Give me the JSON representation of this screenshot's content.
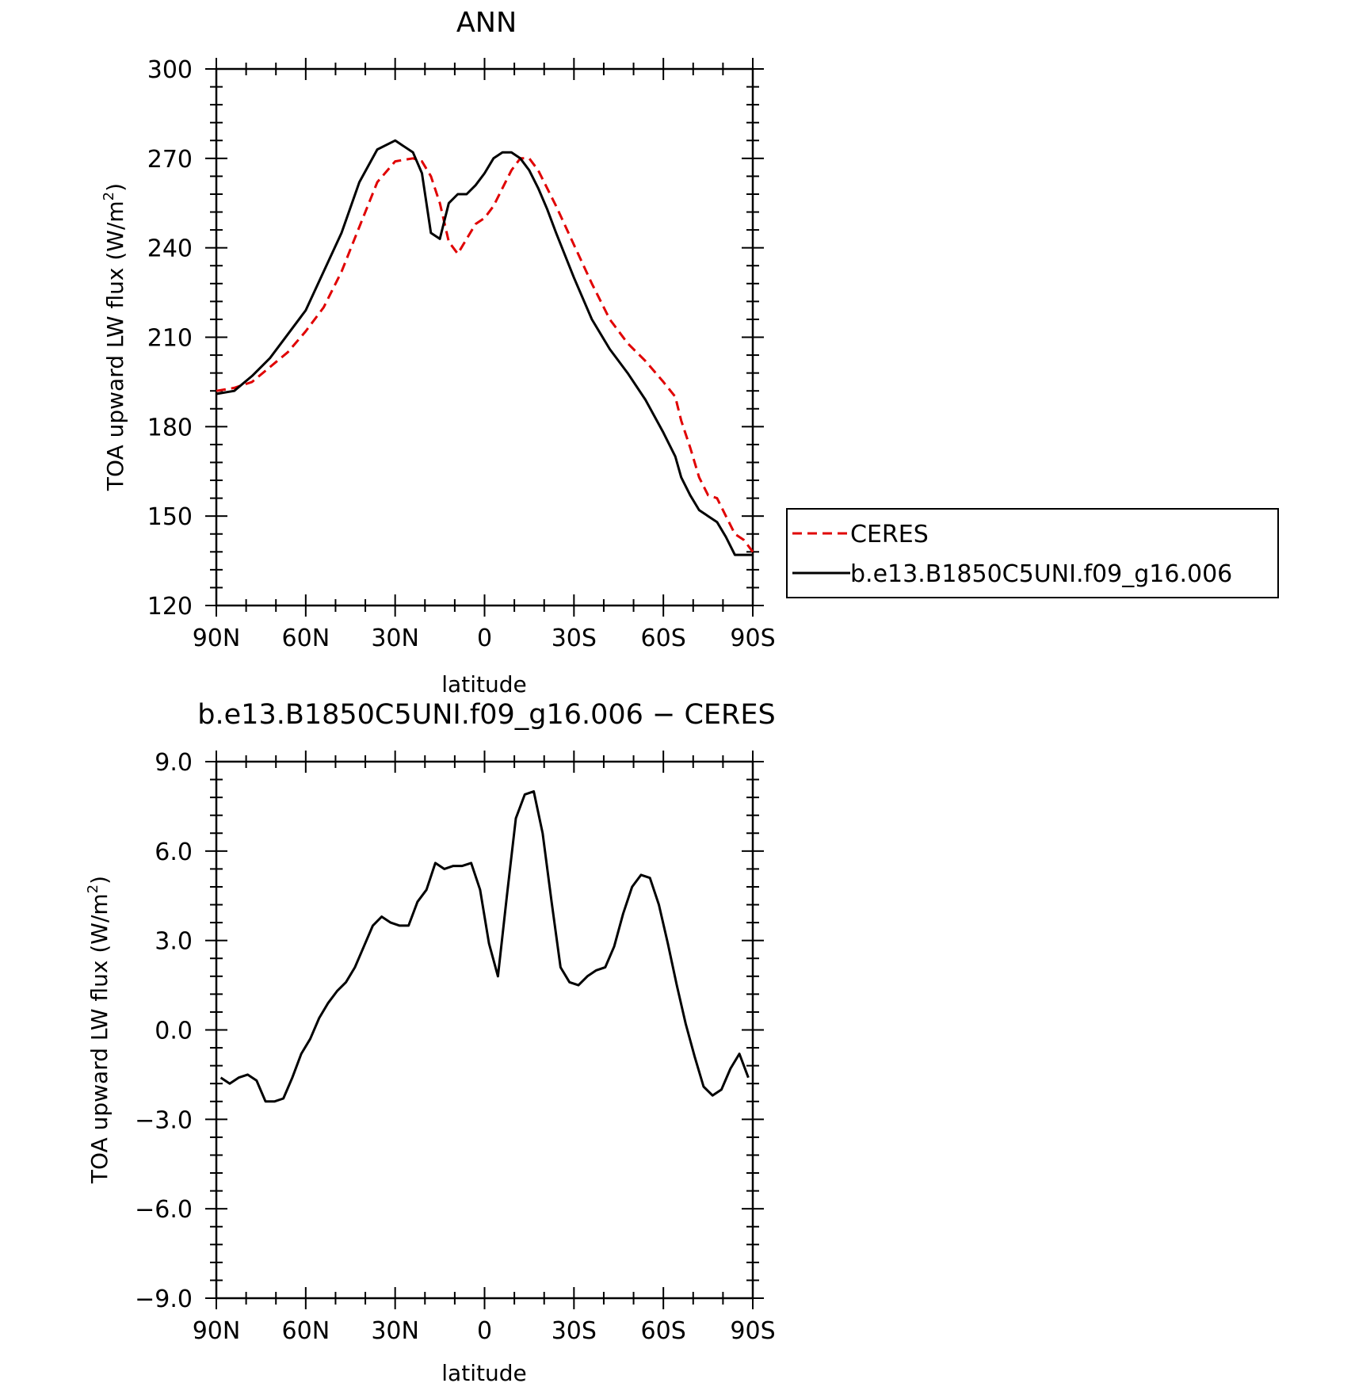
{
  "chart_data": [
    {
      "type": "line",
      "title": "ANN",
      "xlabel": "latitude",
      "ylabel_main": "TOA upward LW flux (W/m",
      "ylabel_sup": "2",
      "ylabel_close": ")",
      "xlim": [
        90,
        -90
      ],
      "ylim": [
        120,
        300
      ],
      "xticks": [
        90,
        60,
        30,
        0,
        -30,
        -60,
        -90
      ],
      "xtick_labels": [
        "90N",
        "60N",
        "30N",
        "0",
        "30S",
        "60S",
        "90S"
      ],
      "yticks": [
        120,
        150,
        180,
        210,
        240,
        270,
        300
      ],
      "ytick_labels": [
        "120",
        "150",
        "180",
        "210",
        "240",
        "270",
        "300"
      ],
      "legend_position": "right",
      "series": [
        {
          "name": "CERES",
          "color": "#e00000",
          "dash": true,
          "x": [
            90,
            84,
            78,
            72,
            66,
            60,
            54,
            48,
            42,
            36,
            30,
            24,
            21,
            18,
            15,
            12,
            9,
            6,
            3,
            0,
            -3,
            -6,
            -9,
            -12,
            -15,
            -18,
            -21,
            -24,
            -30,
            -36,
            -42,
            -48,
            -54,
            -60,
            -64,
            -66,
            -69,
            -72,
            -75,
            -78,
            -81,
            -84,
            -87,
            -90
          ],
          "y": [
            192,
            193,
            195,
            200,
            205,
            212,
            220,
            232,
            247,
            262,
            269,
            270,
            269,
            264,
            255,
            242,
            238,
            243,
            248,
            250,
            254,
            260,
            266,
            270,
            270,
            266,
            260,
            254,
            241,
            228,
            216,
            208,
            202,
            195,
            190,
            182,
            173,
            163,
            157,
            156,
            150,
            144,
            142,
            138
          ],
          "samples": "see-script"
        },
        {
          "name": "b.e13.B1850C5UNI.f09_g16.006",
          "color": "#000000",
          "dash": false,
          "x": [
            90,
            84,
            78,
            72,
            66,
            60,
            54,
            48,
            42,
            36,
            30,
            24,
            21,
            18,
            15,
            12,
            9,
            6,
            3,
            0,
            -3,
            -6,
            -9,
            -12,
            -15,
            -18,
            -21,
            -24,
            -30,
            -36,
            -42,
            -48,
            -54,
            -60,
            -64,
            -66,
            -69,
            -72,
            -75,
            -78,
            -81,
            -84,
            -87,
            -90
          ],
          "y": [
            191,
            192,
            197,
            203,
            211,
            219,
            232,
            245,
            262,
            273,
            276,
            272,
            265,
            245,
            243,
            255,
            258,
            258,
            261,
            265,
            270,
            272,
            272,
            270,
            266,
            260,
            253,
            245,
            230,
            216,
            206,
            198,
            189,
            178,
            170,
            163,
            157,
            152,
            150,
            148,
            143,
            137,
            137,
            137
          ],
          "samples": "see-script"
        }
      ]
    },
    {
      "type": "line",
      "title": "b.e13.B1850C5UNI.f09_g16.006 − CERES",
      "xlabel": "latitude",
      "ylabel_main": "TOA upward LW flux (W/m",
      "ylabel_sup": "2",
      "ylabel_close": ")",
      "xlim": [
        90,
        -90
      ],
      "ylim": [
        -9,
        9
      ],
      "xticks": [
        90,
        60,
        30,
        0,
        -30,
        -60,
        -90
      ],
      "xtick_labels": [
        "90N",
        "60N",
        "30N",
        "0",
        "30S",
        "60S",
        "90S"
      ],
      "yticks": [
        9,
        6,
        3,
        0,
        -3,
        -6,
        -9
      ],
      "ytick_labels": [
        "9.0",
        "6.0",
        "3.0",
        "0.0",
        "−3.0",
        "−6.0",
        "−9.0"
      ],
      "series": [
        {
          "name": "",
          "color": "#000000",
          "dash": false,
          "x": [
            88.5,
            85.5,
            82.5,
            79.5,
            76.5,
            73.5,
            70.5,
            67.5,
            64.5,
            61.5,
            58.5,
            55.5,
            52.5,
            49.5,
            46.5,
            43.5,
            40.5,
            37.5,
            34.5,
            31.5,
            28.5,
            25.5,
            22.5,
            19.5,
            16.5,
            13.5,
            10.5,
            7.5,
            4.5,
            1.5,
            -1.5,
            -4.5,
            -7.5,
            -10.5,
            -13.5,
            -16.5,
            -19.5,
            -22.5,
            -25.5,
            -28.5,
            -31.5,
            -34.5,
            -37.5,
            -40.5,
            -43.5,
            -46.5,
            -49.5,
            -52.5,
            -55.5,
            -58.5,
            -61.5,
            -64.5,
            -67.5,
            -70.5,
            -73.5,
            -76.5,
            -79.5,
            -82.5,
            -85.5,
            -88.5
          ],
          "y": [
            -1.6,
            -1.8,
            -1.6,
            -1.5,
            -1.7,
            -2.4,
            -2.4,
            -2.3,
            -1.6,
            -0.8,
            -0.3,
            0.4,
            0.9,
            1.3,
            1.6,
            2.1,
            2.8,
            3.5,
            3.8,
            3.6,
            3.5,
            3.5,
            4.3,
            4.7,
            5.6,
            5.4,
            5.5,
            5.5,
            5.6,
            4.7,
            2.9,
            1.8,
            4.5,
            7.1,
            7.9,
            8.0,
            6.6,
            4.3,
            2.1,
            1.6,
            1.5,
            1.8,
            2.0,
            2.1,
            2.8,
            3.9,
            4.8,
            5.2,
            5.1,
            4.2,
            2.9,
            1.5,
            0.2,
            -0.9,
            -1.9,
            -2.2,
            -2.0,
            -1.3,
            -0.8,
            -1.6
          ]
        }
      ]
    }
  ],
  "legend": {
    "ceres_label": "CERES",
    "model_label": "b.e13.B1850C5UNI.f09_g16.006"
  }
}
